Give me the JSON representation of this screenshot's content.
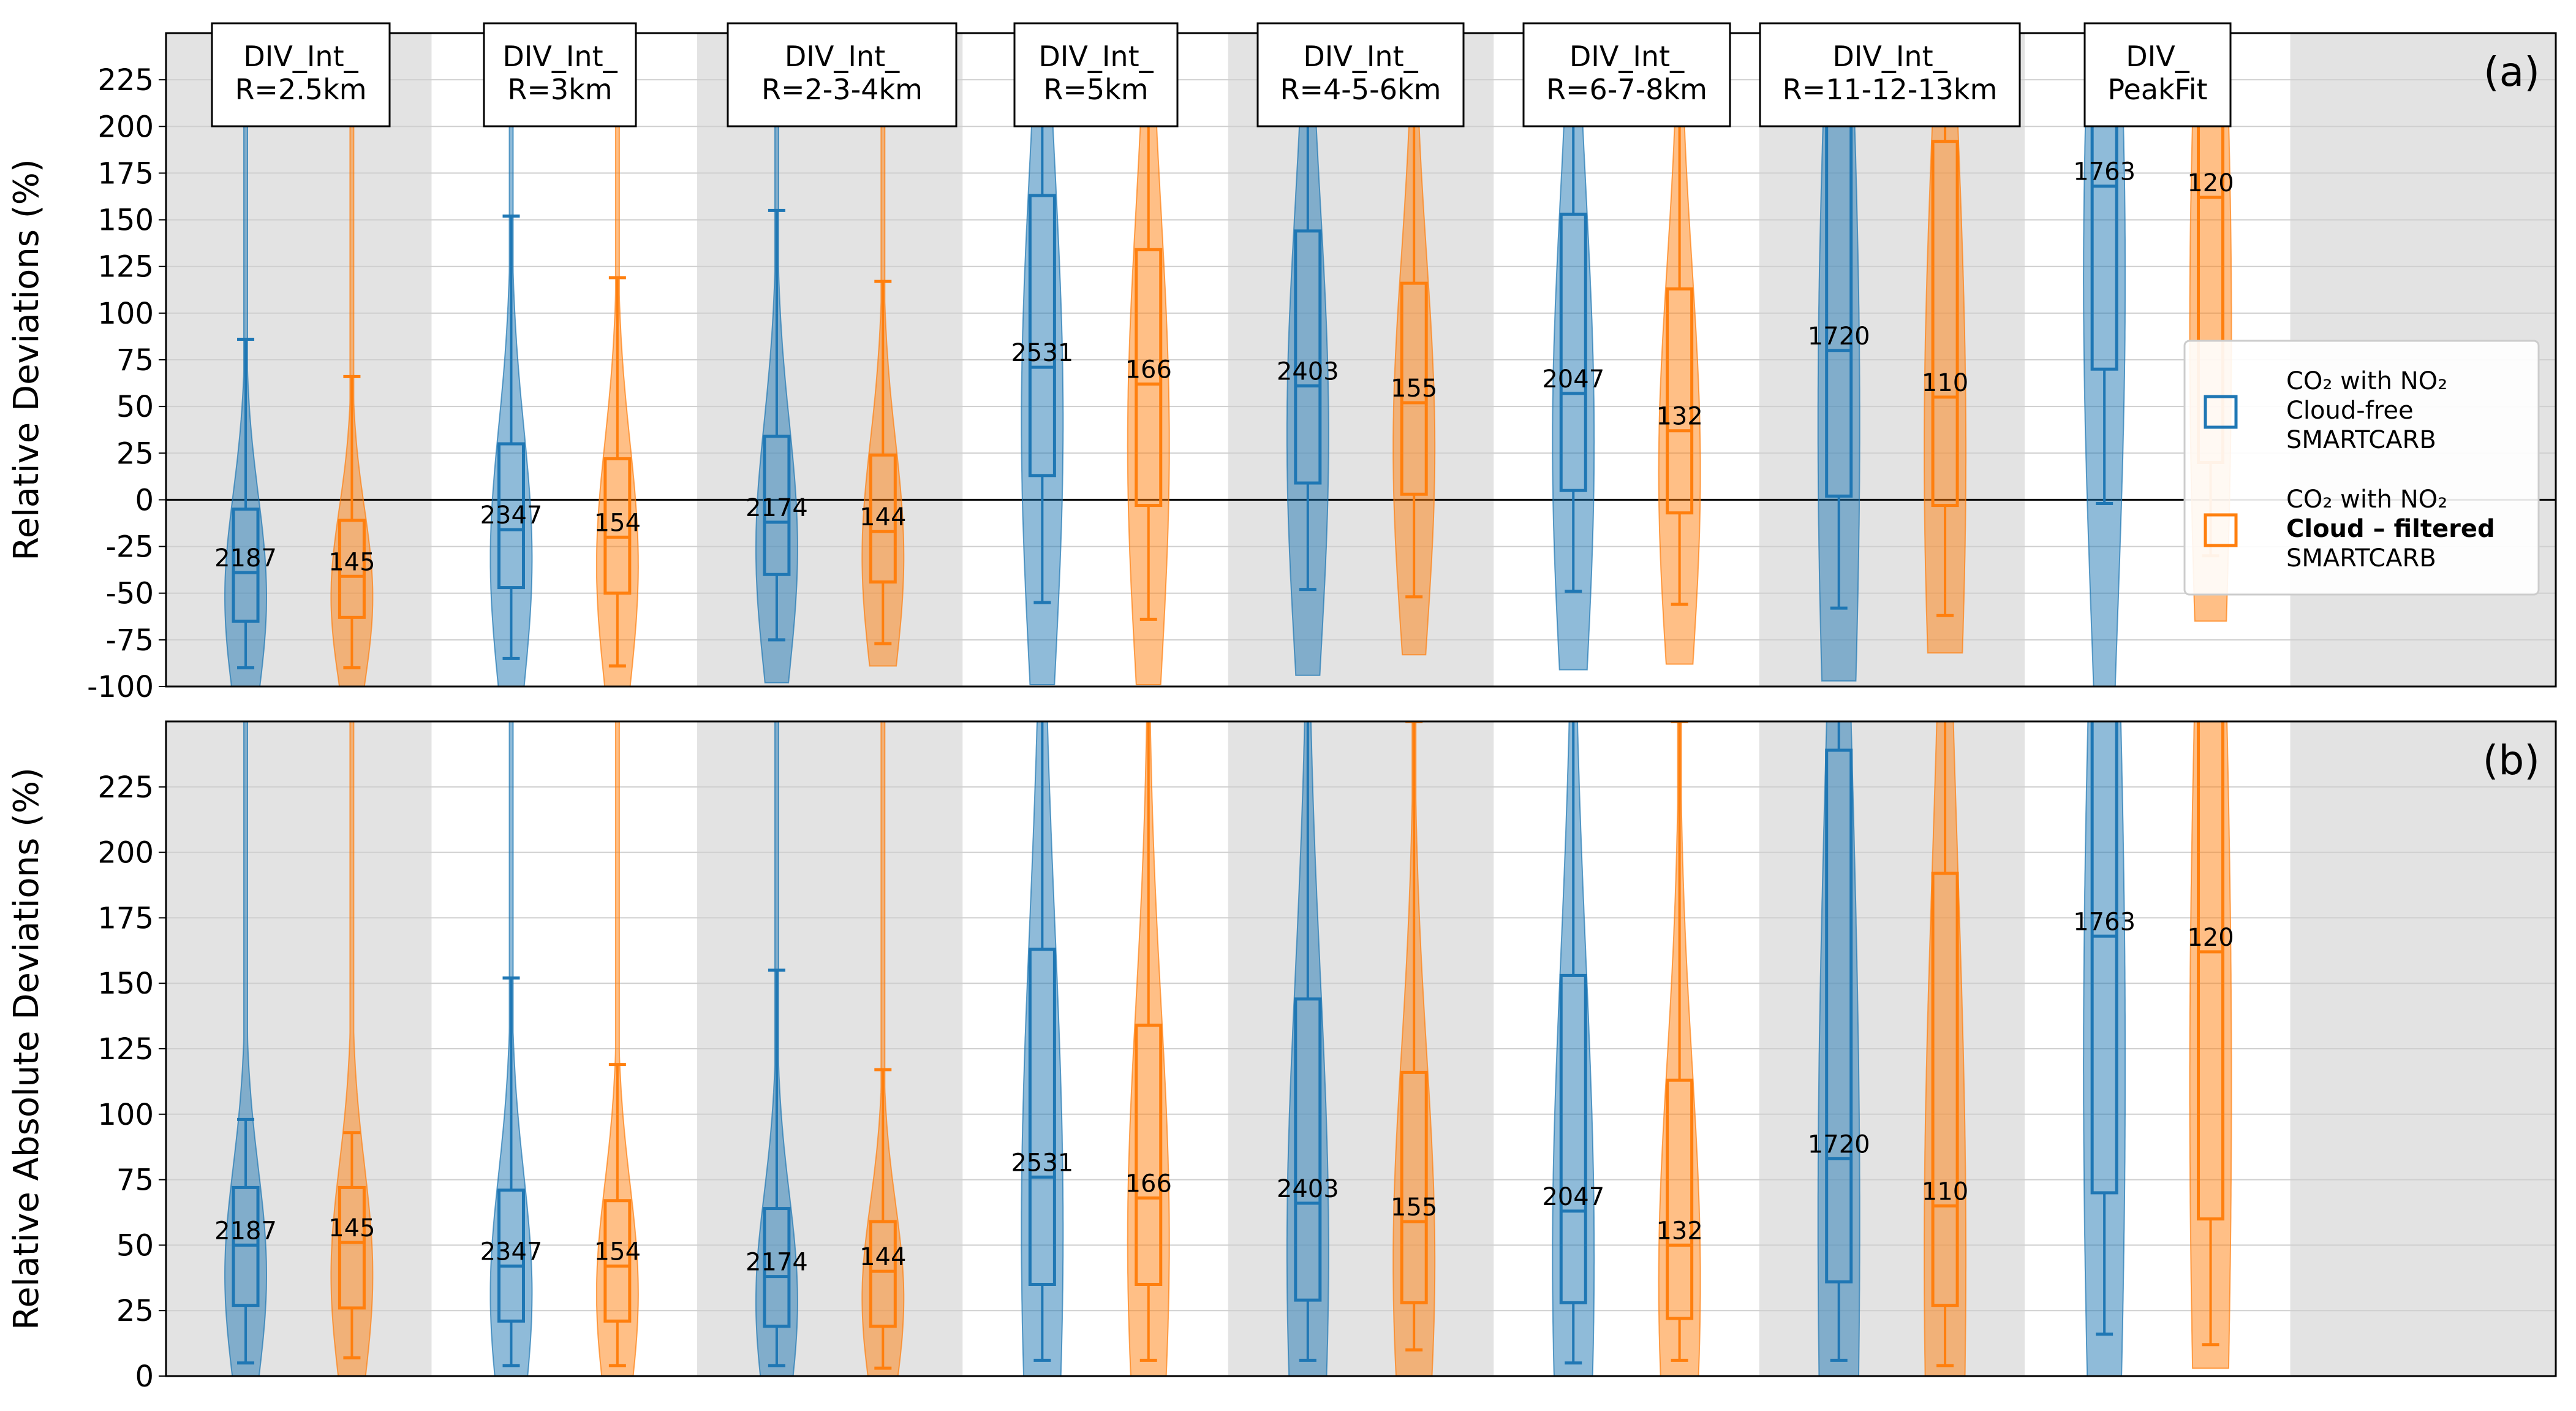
{
  "colors": {
    "cloud_free": "#1f77b4",
    "cloud_filtered": "#ff7f0e",
    "shade": "#e3e3e3",
    "grid": "#cfcfcf"
  },
  "chart_data": [
    {
      "panel_label": "(a)",
      "type": "violin+box",
      "ylabel": "Relative Deviations (%)",
      "ylim": [
        -100,
        250
      ],
      "yticks": [
        -100,
        -75,
        -50,
        -25,
        0,
        25,
        50,
        75,
        100,
        125,
        150,
        175,
        200,
        225
      ],
      "zero_line": true,
      "grid": true,
      "categories": [
        "DIV_Int_\nR=2.5km",
        "DIV_Int_\nR=3km",
        "DIV_Int_\nR=2-3-4km",
        "DIV_Int_\nR=5km",
        "DIV_Int_\nR=4-5-6km",
        "DIV_Int_\nR=6-7-8km",
        "DIV_Int_\nR=11-12-13km",
        "DIV_\nPeakFit"
      ],
      "legend": {
        "placement": "center-right",
        "entries": [
          {
            "line1": "CO₂ with NO₂",
            "line2": "Cloud-free",
            "line3": "SMARTCARB",
            "bold_line2": false
          },
          {
            "line1": "CO₂ with NO₂",
            "line2": "Cloud – filtered",
            "line3": "SMARTCARB",
            "bold_line2": true
          }
        ]
      },
      "series": [
        {
          "key": "cloud_free",
          "stats": [
            {
              "count": 2187,
              "q1": -65,
              "median": -39,
              "q3": -5,
              "whisker_low": -90,
              "whisker_high": 86,
              "violin_min": -100,
              "violin_max": 250
            },
            {
              "count": 2347,
              "q1": -47,
              "median": -16,
              "q3": 30,
              "whisker_low": -85,
              "whisker_high": 152,
              "violin_min": -100,
              "violin_max": 250
            },
            {
              "count": 2174,
              "q1": -40,
              "median": -12,
              "q3": 34,
              "whisker_low": -75,
              "whisker_high": 155,
              "violin_min": -98,
              "violin_max": 250
            },
            {
              "count": 2531,
              "q1": 13,
              "median": 71,
              "q3": 163,
              "whisker_low": -55,
              "whisker_high": 270,
              "violin_min": -99,
              "violin_max": 250
            },
            {
              "count": 2403,
              "q1": 9,
              "median": 61,
              "q3": 144,
              "whisker_low": -48,
              "whisker_high": 260,
              "violin_min": -94,
              "violin_max": 250
            },
            {
              "count": 2047,
              "q1": 5,
              "median": 57,
              "q3": 153,
              "whisker_low": -49,
              "whisker_high": 260,
              "violin_min": -91,
              "violin_max": 250
            },
            {
              "count": 1720,
              "q1": 2,
              "median": 80,
              "q3": 240,
              "whisker_low": -58,
              "whisker_high": 300,
              "violin_min": -97,
              "violin_max": 250
            },
            {
              "count": 1763,
              "q1": 70,
              "median": 168,
              "q3": 280,
              "whisker_low": -2,
              "whisker_high": 320,
              "violin_min": -100,
              "violin_max": 250
            }
          ]
        },
        {
          "key": "cloud_filtered",
          "stats": [
            {
              "count": 145,
              "q1": -63,
              "median": -41,
              "q3": -11,
              "whisker_low": -90,
              "whisker_high": 66,
              "violin_min": -100,
              "violin_max": 250
            },
            {
              "count": 154,
              "q1": -50,
              "median": -20,
              "q3": 22,
              "whisker_low": -89,
              "whisker_high": 119,
              "violin_min": -100,
              "violin_max": 250
            },
            {
              "count": 144,
              "q1": -44,
              "median": -17,
              "q3": 24,
              "whisker_low": -77,
              "whisker_high": 117,
              "violin_min": -89,
              "violin_max": 250
            },
            {
              "count": 166,
              "q1": -3,
              "median": 62,
              "q3": 134,
              "whisker_low": -64,
              "whisker_high": 260,
              "violin_min": -99,
              "violin_max": 250
            },
            {
              "count": 155,
              "q1": 3,
              "median": 52,
              "q3": 116,
              "whisker_low": -52,
              "whisker_high": 250,
              "violin_min": -83,
              "violin_max": 250
            },
            {
              "count": 132,
              "q1": -7,
              "median": 37,
              "q3": 113,
              "whisker_low": -56,
              "whisker_high": 250,
              "violin_min": -88,
              "violin_max": 250
            },
            {
              "count": 110,
              "q1": -3,
              "median": 55,
              "q3": 192,
              "whisker_low": -62,
              "whisker_high": 300,
              "violin_min": -82,
              "violin_max": 250
            },
            {
              "count": 120,
              "q1": 20,
              "median": 162,
              "q3": 250,
              "whisker_low": -30,
              "whisker_high": 320,
              "violin_min": -65,
              "violin_max": 250
            }
          ]
        }
      ]
    },
    {
      "panel_label": "(b)",
      "type": "violin+box",
      "ylabel": "Relative Absolute Deviations (%)",
      "ylim": [
        0,
        250
      ],
      "yticks": [
        0,
        25,
        50,
        75,
        100,
        125,
        150,
        175,
        200,
        225
      ],
      "grid": true,
      "series": [
        {
          "key": "cloud_free",
          "stats": [
            {
              "count": 2187,
              "q1": 27,
              "median": 50,
              "q3": 72,
              "whisker_low": 5,
              "whisker_high": 98,
              "violin_min": 0,
              "violin_max": 250
            },
            {
              "count": 2347,
              "q1": 21,
              "median": 42,
              "q3": 71,
              "whisker_low": 4,
              "whisker_high": 152,
              "violin_min": 0,
              "violin_max": 250
            },
            {
              "count": 2174,
              "q1": 19,
              "median": 38,
              "q3": 64,
              "whisker_low": 4,
              "whisker_high": 155,
              "violin_min": 0,
              "violin_max": 250
            },
            {
              "count": 2531,
              "q1": 35,
              "median": 76,
              "q3": 163,
              "whisker_low": 6,
              "whisker_high": 270,
              "violin_min": 0,
              "violin_max": 250
            },
            {
              "count": 2403,
              "q1": 29,
              "median": 66,
              "q3": 144,
              "whisker_low": 6,
              "whisker_high": 260,
              "violin_min": 0,
              "violin_max": 250
            },
            {
              "count": 2047,
              "q1": 28,
              "median": 63,
              "q3": 153,
              "whisker_low": 5,
              "whisker_high": 260,
              "violin_min": 0,
              "violin_max": 250
            },
            {
              "count": 1720,
              "q1": 36,
              "median": 83,
              "q3": 239,
              "whisker_low": 6,
              "whisker_high": 300,
              "violin_min": 0,
              "violin_max": 250
            },
            {
              "count": 1763,
              "q1": 70,
              "median": 168,
              "q3": 280,
              "whisker_low": 16,
              "whisker_high": 320,
              "violin_min": 0,
              "violin_max": 250
            }
          ]
        },
        {
          "key": "cloud_filtered",
          "stats": [
            {
              "count": 145,
              "q1": 26,
              "median": 51,
              "q3": 72,
              "whisker_low": 7,
              "whisker_high": 93,
              "violin_min": 0,
              "violin_max": 250
            },
            {
              "count": 154,
              "q1": 21,
              "median": 42,
              "q3": 67,
              "whisker_low": 4,
              "whisker_high": 119,
              "violin_min": 0,
              "violin_max": 250
            },
            {
              "count": 144,
              "q1": 19,
              "median": 40,
              "q3": 59,
              "whisker_low": 3,
              "whisker_high": 117,
              "violin_min": 0,
              "violin_max": 250
            },
            {
              "count": 166,
              "q1": 35,
              "median": 68,
              "q3": 134,
              "whisker_low": 6,
              "whisker_high": 260,
              "violin_min": 0,
              "violin_max": 250
            },
            {
              "count": 155,
              "q1": 28,
              "median": 59,
              "q3": 116,
              "whisker_low": 10,
              "whisker_high": 250,
              "violin_min": 0,
              "violin_max": 250
            },
            {
              "count": 132,
              "q1": 22,
              "median": 50,
              "q3": 113,
              "whisker_low": 6,
              "whisker_high": 250,
              "violin_min": 0,
              "violin_max": 250
            },
            {
              "count": 110,
              "q1": 27,
              "median": 65,
              "q3": 192,
              "whisker_low": 4,
              "whisker_high": 300,
              "violin_min": 0,
              "violin_max": 250
            },
            {
              "count": 120,
              "q1": 60,
              "median": 162,
              "q3": 280,
              "whisker_low": 12,
              "whisker_high": 320,
              "violin_min": 3,
              "violin_max": 250
            }
          ]
        }
      ]
    }
  ]
}
